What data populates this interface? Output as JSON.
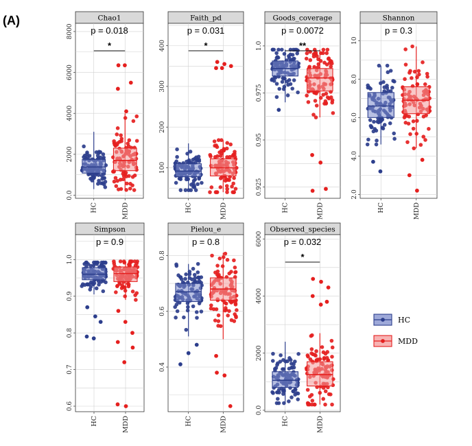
{
  "figure_label": "(A)",
  "colors": {
    "HC": "#2c3e8c",
    "MDD": "#e5201f",
    "HC_box": "#7d8ccc",
    "MDD_box": "#f49a9a"
  },
  "legend": {
    "items": [
      {
        "group": "HC",
        "label": "HC"
      },
      {
        "group": "MDD",
        "label": "MDD"
      }
    ]
  },
  "chart_data": [
    {
      "type": "box",
      "title": "Chao1",
      "categories": [
        "HC",
        "MDD"
      ],
      "ylim": [
        -150,
        8400
      ],
      "yticks": [
        0,
        2000,
        4000,
        6000,
        8000
      ],
      "pvalue": "p = 0.018",
      "significance": "*",
      "series": [
        {
          "name": "HC",
          "q1": 1080,
          "median": 1380,
          "q3": 1750,
          "whisker_low": 300,
          "whisker_high": 3100,
          "n": 95,
          "outliers": []
        },
        {
          "name": "MDD",
          "q1": 1200,
          "median": 1700,
          "q3": 2300,
          "whisker_low": 250,
          "whisker_high": 4000,
          "n": 95,
          "outliers": [
            6350,
            6350,
            5500,
            5200,
            4100
          ]
        }
      ]
    },
    {
      "type": "box",
      "title": "Faith_pd",
      "categories": [
        "HC",
        "MDD"
      ],
      "ylim": [
        25,
        455
      ],
      "yticks": [
        100,
        200,
        300,
        400
      ],
      "pvalue": "p = 0.031",
      "significance": "*",
      "series": [
        {
          "name": "HC",
          "q1": 78,
          "median": 92,
          "q3": 110,
          "whisker_low": 45,
          "whisker_high": 160,
          "n": 95,
          "outliers": []
        },
        {
          "name": "MDD",
          "q1": 80,
          "median": 100,
          "q3": 122,
          "whisker_low": 40,
          "whisker_high": 168,
          "n": 95,
          "outliers": [
            360,
            355,
            350,
            345,
            345
          ]
        }
      ]
    },
    {
      "type": "box",
      "title": "Goods_coverage",
      "categories": [
        "HC",
        "MDD"
      ],
      "ylim": [
        0.919,
        1.012
      ],
      "yticks": [
        0.925,
        0.95,
        0.975,
        1.0
      ],
      "pvalue": "p = 0.0072",
      "significance": "**",
      "series": [
        {
          "name": "HC",
          "q1": 0.984,
          "median": 0.988,
          "q3": 0.992,
          "whisker_low": 0.97,
          "whisker_high": 0.998,
          "n": 95,
          "outliers": [
            0.966
          ]
        },
        {
          "name": "MDD",
          "q1": 0.976,
          "median": 0.983,
          "q3": 0.988,
          "whisker_low": 0.962,
          "whisker_high": 0.998,
          "n": 95,
          "outliers": [
            0.942,
            0.938,
            0.924,
            0.923
          ]
        }
      ]
    },
    {
      "type": "box",
      "title": "Shannon",
      "categories": [
        "HC",
        "MDD"
      ],
      "ylim": [
        1.8,
        10.9
      ],
      "yticks": [
        2,
        4,
        6,
        8,
        10
      ],
      "pvalue": "p = 0.3",
      "significance": "",
      "series": [
        {
          "name": "HC",
          "q1": 6.0,
          "median": 6.6,
          "q3": 7.3,
          "whisker_low": 4.6,
          "whisker_high": 8.7,
          "n": 90,
          "outliers": [
            3.7,
            3.2
          ]
        },
        {
          "name": "MDD",
          "q1": 6.2,
          "median": 6.9,
          "q3": 7.6,
          "whisker_low": 4.4,
          "whisker_high": 9.7,
          "n": 90,
          "outliers": [
            3.0,
            2.2,
            3.8
          ]
        }
      ]
    },
    {
      "type": "box",
      "title": "Simpson",
      "categories": [
        "HC",
        "MDD"
      ],
      "ylim": [
        0.585,
        1.068
      ],
      "yticks": [
        0.6,
        0.7,
        0.8,
        0.9,
        1.0
      ],
      "pvalue": "p = 0.9",
      "significance": "",
      "series": [
        {
          "name": "HC",
          "q1": 0.945,
          "median": 0.96,
          "q3": 0.978,
          "whisker_low": 0.905,
          "whisker_high": 0.992,
          "n": 95,
          "outliers": [
            0.87,
            0.845,
            0.83,
            0.79,
            0.785
          ]
        },
        {
          "name": "MDD",
          "q1": 0.94,
          "median": 0.962,
          "q3": 0.98,
          "whisker_low": 0.89,
          "whisker_high": 0.995,
          "n": 95,
          "outliers": [
            0.86,
            0.83,
            0.8,
            0.775,
            0.72,
            0.76,
            0.605,
            0.6
          ]
        }
      ]
    },
    {
      "type": "box",
      "title": "Pielou_e",
      "categories": [
        "HC",
        "MDD"
      ],
      "ylim": [
        0.24,
        0.875
      ],
      "yticks": [
        0.4,
        0.6,
        0.8
      ],
      "pvalue": "p = 0.8",
      "significance": "",
      "series": [
        {
          "name": "HC",
          "q1": 0.635,
          "median": 0.67,
          "q3": 0.7,
          "whisker_low": 0.51,
          "whisker_high": 0.77,
          "n": 95,
          "outliers": [
            0.41,
            0.45,
            0.48
          ]
        },
        {
          "name": "MDD",
          "q1": 0.64,
          "median": 0.68,
          "q3": 0.72,
          "whisker_low": 0.5,
          "whisker_high": 0.81,
          "n": 95,
          "outliers": [
            0.38,
            0.37,
            0.26,
            0.44
          ]
        }
      ]
    },
    {
      "type": "box",
      "title": "Observed_species",
      "categories": [
        "HC",
        "MDD"
      ],
      "ylim": [
        -50,
        6150
      ],
      "yticks": [
        0,
        2000,
        4000,
        6000
      ],
      "pvalue": "p = 0.032",
      "significance": "*",
      "series": [
        {
          "name": "HC",
          "q1": 800,
          "median": 1050,
          "q3": 1350,
          "whisker_low": 250,
          "whisker_high": 2400,
          "n": 95,
          "outliers": []
        },
        {
          "name": "MDD",
          "q1": 850,
          "median": 1250,
          "q3": 1700,
          "whisker_low": 200,
          "whisker_high": 2700,
          "n": 95,
          "outliers": [
            4600,
            4500,
            4300,
            4000,
            3700,
            3800
          ]
        }
      ]
    }
  ]
}
